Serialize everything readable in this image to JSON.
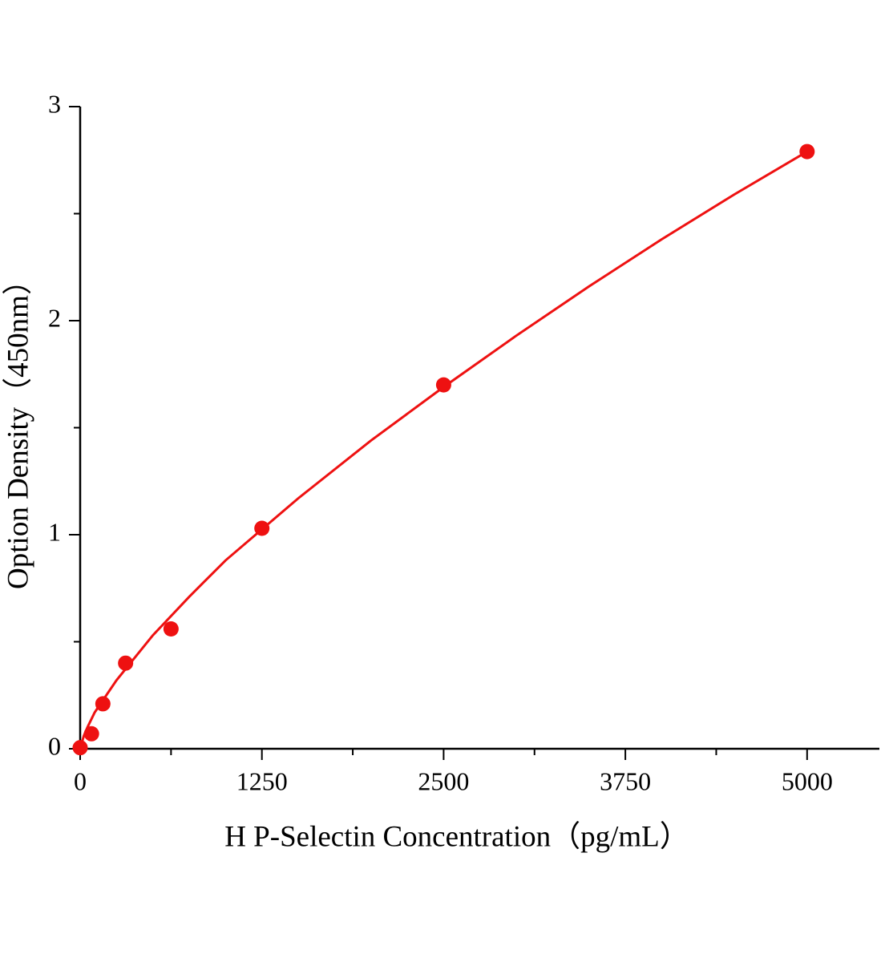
{
  "chart_data": {
    "type": "scatter",
    "x_label": "H P-Selectin Concentration（pg/mL）",
    "y_label": "Option Density（450nm）",
    "x": [
      0,
      78.125,
      156.25,
      312.5,
      625,
      1250,
      2500,
      5000
    ],
    "series": [
      {
        "color": "#ee1111",
        "values": [
          0.005,
          0.07,
          0.21,
          0.4,
          0.56,
          1.03,
          1.7,
          2.79
        ]
      }
    ],
    "fit": {
      "color": "#ee1111",
      "x": [
        0,
        25,
        50,
        100,
        250,
        500,
        750,
        1000,
        1500,
        2000,
        2500,
        3000,
        3500,
        4000,
        4500,
        5000
      ],
      "values": [
        0,
        0.06,
        0.1,
        0.17,
        0.32,
        0.53,
        0.71,
        0.88,
        1.17,
        1.44,
        1.69,
        1.93,
        2.16,
        2.38,
        2.59,
        2.79
      ]
    },
    "xlim": [
      0,
      5500
    ],
    "ylim": [
      0,
      3
    ],
    "xticks": [
      0,
      1250,
      2500,
      3750,
      5000
    ],
    "yticks": [
      0,
      1,
      2,
      3
    ],
    "xminorticks": [
      625,
      1875,
      3125,
      4375
    ],
    "yminorticks": [
      0.5,
      1.5,
      2.5
    ]
  }
}
